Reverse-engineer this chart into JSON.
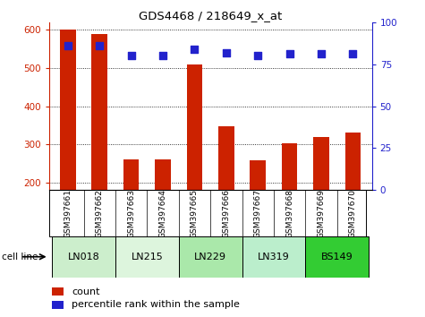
{
  "title": "GDS4468 / 218649_x_at",
  "samples": [
    "GSM397661",
    "GSM397662",
    "GSM397663",
    "GSM397664",
    "GSM397665",
    "GSM397666",
    "GSM397667",
    "GSM397668",
    "GSM397669",
    "GSM397670"
  ],
  "counts": [
    600,
    590,
    260,
    260,
    510,
    348,
    258,
    302,
    320,
    330
  ],
  "percentile_ranks": [
    86,
    86,
    80,
    80,
    84,
    82,
    80,
    81,
    81,
    81
  ],
  "cell_lines": [
    {
      "label": "LN018",
      "start": 0,
      "end": 2,
      "color": "#cceecc"
    },
    {
      "label": "LN215",
      "start": 2,
      "end": 4,
      "color": "#ddf5dd"
    },
    {
      "label": "LN229",
      "start": 4,
      "end": 6,
      "color": "#aae8aa"
    },
    {
      "label": "LN319",
      "start": 6,
      "end": 8,
      "color": "#bbeecc"
    },
    {
      "label": "BS149",
      "start": 8,
      "end": 10,
      "color": "#33cc33"
    }
  ],
  "ylim_left": [
    180,
    620
  ],
  "ylim_right": [
    0,
    100
  ],
  "yticks_left": [
    200,
    300,
    400,
    500,
    600
  ],
  "yticks_right": [
    0,
    25,
    50,
    75,
    100
  ],
  "bar_color": "#cc2200",
  "dot_color": "#2222cc",
  "bar_width": 0.5,
  "bg_color": "#ffffff",
  "sample_bg": "#cccccc",
  "legend_count_color": "#cc2200",
  "legend_pct_color": "#2222cc"
}
